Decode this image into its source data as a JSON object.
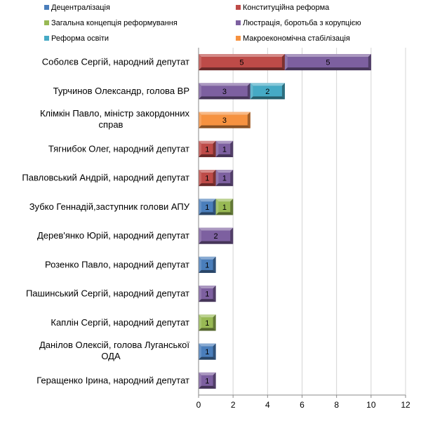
{
  "chart_data": {
    "type": "bar",
    "orientation": "horizontal",
    "stacked": true,
    "legend_position": "top",
    "grid": true,
    "xlim": [
      0,
      12
    ],
    "x_ticks": [
      "0",
      "2",
      "4",
      "6",
      "8",
      "10",
      "12"
    ],
    "categories": [
      "Соболєв Сергій, народний депутат",
      "Турчинов Олександр, голова ВР",
      "Клімкін Павло, міністр закордонних справ",
      "Тягнибок Олег, народний депутат",
      "Павловський Андрій, народний депутат",
      "Зубко Геннадій,заступник голови АПУ",
      "Дерев'янко Юрій, народний депутат",
      "Розенко Павло, народний депутат",
      "Пашинський Сергій, народний депутат",
      "Каплін Сергій,  народний депутат",
      "Данілов Олексій, голова Луганської ОДА",
      "Геращенко Ірина, народний депутат"
    ],
    "series": [
      {
        "name": "Децентралізація",
        "color": "#4A7EBB",
        "values": [
          0,
          0,
          0,
          0,
          0,
          1,
          0,
          1,
          0,
          0,
          1,
          0
        ]
      },
      {
        "name": "Конституційна реформа",
        "color": "#BE4B48",
        "values": [
          5,
          0,
          0,
          1,
          1,
          0,
          0,
          0,
          0,
          0,
          0,
          0
        ]
      },
      {
        "name": "Загальна концепція реформування",
        "color": "#98B954",
        "values": [
          0,
          0,
          0,
          0,
          0,
          1,
          0,
          0,
          0,
          1,
          0,
          0
        ]
      },
      {
        "name": "Люстрація, боротьба з корупцією",
        "color": "#7D60A0",
        "values": [
          5,
          3,
          0,
          1,
          1,
          0,
          2,
          0,
          1,
          0,
          0,
          1
        ]
      },
      {
        "name": "Реформа освіти",
        "color": "#46AAC5",
        "values": [
          0,
          2,
          0,
          0,
          0,
          0,
          0,
          0,
          0,
          0,
          0,
          0
        ]
      },
      {
        "name": "Макроекономічна стабілізація",
        "color": "#F69240",
        "values": [
          0,
          0,
          3,
          0,
          0,
          0,
          0,
          0,
          0,
          0,
          0,
          0
        ]
      }
    ]
  }
}
